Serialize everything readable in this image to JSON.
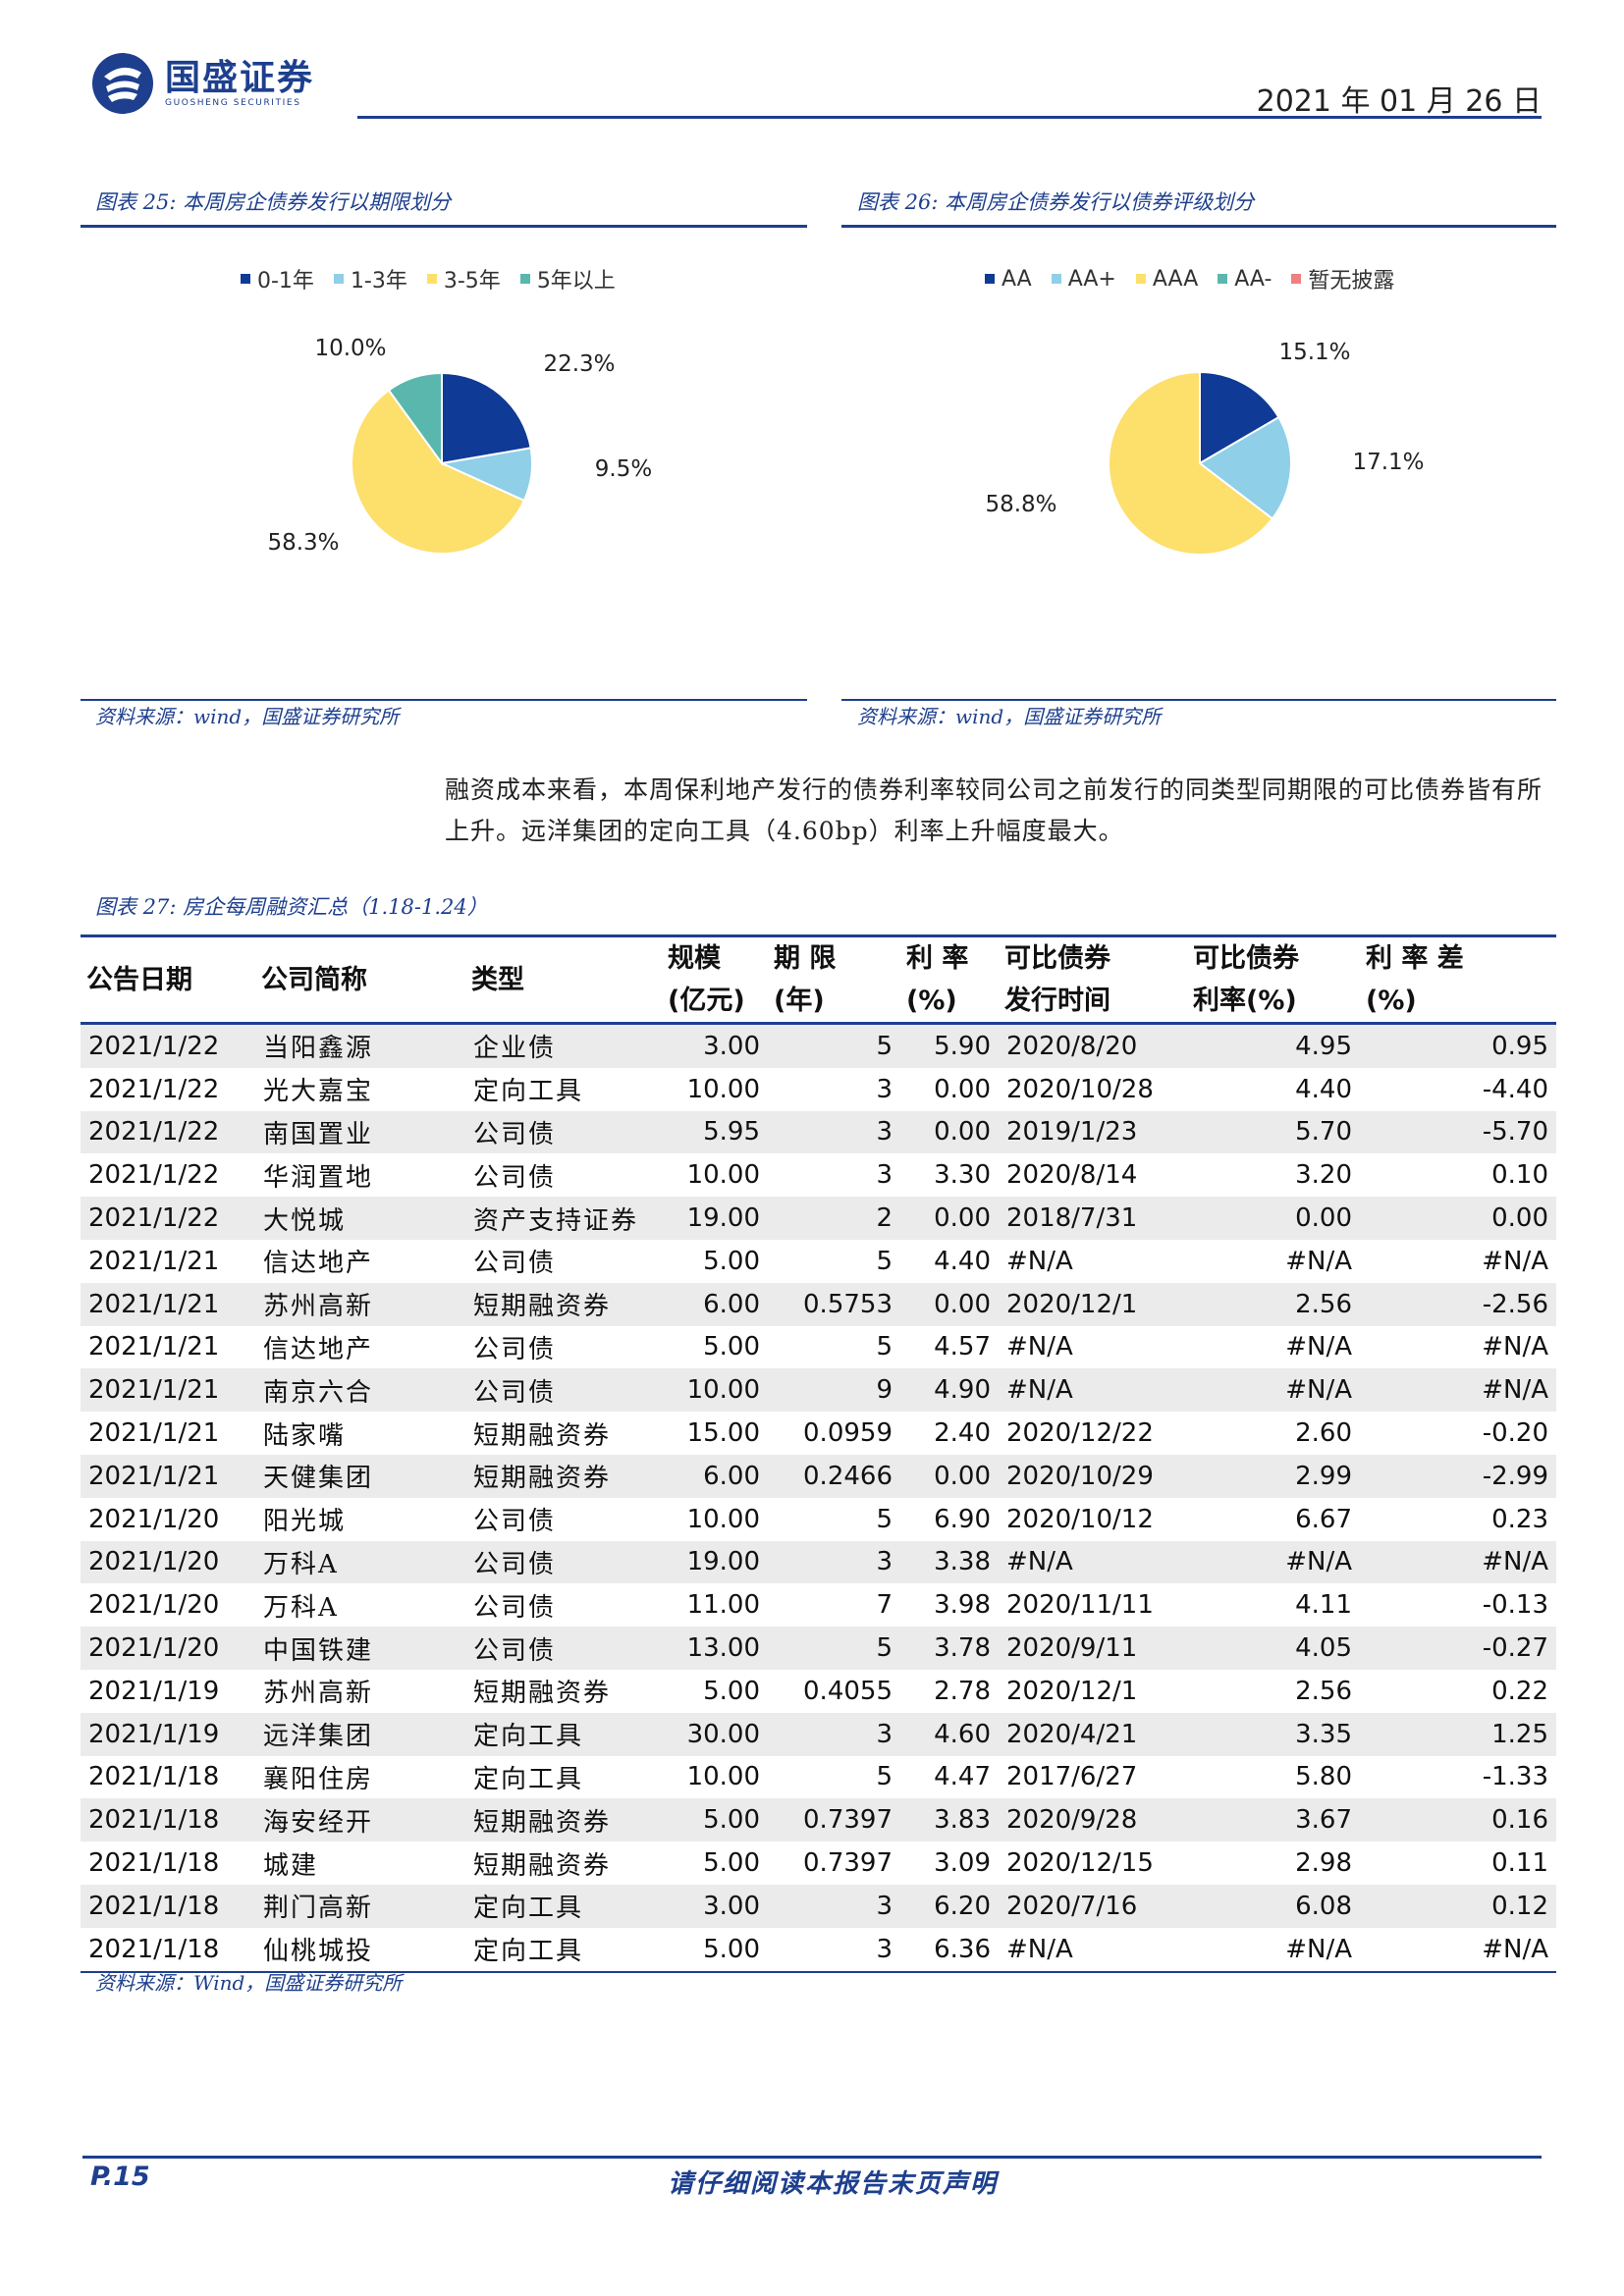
{
  "header": {
    "brand_cn": "国盛证券",
    "brand_en": "GUOSHENG SECURITIES",
    "date": "2021 年 01 月 26 日"
  },
  "colors": {
    "accent": "#1d3f8e"
  },
  "figures": [
    {
      "title": "图表 25:  本周房企债券发行以期限划分",
      "source": "资料来源：wind，国盛证券研究所",
      "chart_data": {
        "type": "pie",
        "labels": [
          "0-1年",
          "1-3年",
          "3-5年",
          "5年以上"
        ],
        "values": [
          22.3,
          9.5,
          58.3,
          10.0
        ],
        "value_labels": [
          "22.3%",
          "9.5%",
          "58.3%",
          "10.0%"
        ],
        "colors": [
          "#0f3a96",
          "#8fcfe8",
          "#fddf6b",
          "#5ab7ad"
        ],
        "legend": "top"
      }
    },
    {
      "title": "图表 26:  本周房企债券发行以债券评级划分",
      "source": "资料来源：wind，国盛证券研究所",
      "chart_data": {
        "type": "pie",
        "labels": [
          "AA",
          "AA+",
          "AAA",
          "AA-",
          "暂无披露"
        ],
        "values": [
          15.1,
          17.1,
          58.8,
          0,
          0
        ],
        "value_labels": [
          "15.1%",
          "17.1%",
          "58.8%",
          "",
          ""
        ],
        "colors": [
          "#0f3a96",
          "#8fcfe8",
          "#fddf6b",
          "#5ab7ad",
          "#f08080"
        ],
        "legend": "top"
      }
    }
  ],
  "paragraph": "融资成本来看，本周保利地产发行的债券利率较同公司之前发行的同类型同期限的可比债券皆有所上升。远洋集团的定向工具（4.60bp）利率上升幅度最大。",
  "table": {
    "title": "图表 27:  房企每周融资汇总（1.18-1.24）",
    "headers": [
      [
        "公告日期"
      ],
      [
        "公司简称"
      ],
      [
        "类型"
      ],
      [
        "规模",
        "(亿元)"
      ],
      [
        "期  限",
        "(年)"
      ],
      [
        "利  率",
        "(%)"
      ],
      [
        "可比债券",
        "发行时间"
      ],
      [
        "可比债券",
        "利率(%)"
      ],
      [
        "利 率 差",
        "(%)"
      ]
    ],
    "rows": [
      [
        "2021/1/22",
        "当阳鑫源",
        "企业债",
        "3.00",
        "5",
        "5.90",
        "2020/8/20",
        "4.95",
        "0.95"
      ],
      [
        "2021/1/22",
        "光大嘉宝",
        "定向工具",
        "10.00",
        "3",
        "0.00",
        "2020/10/28",
        "4.40",
        "-4.40"
      ],
      [
        "2021/1/22",
        "南国置业",
        "公司债",
        "5.95",
        "3",
        "0.00",
        "2019/1/23",
        "5.70",
        "-5.70"
      ],
      [
        "2021/1/22",
        "华润置地",
        "公司债",
        "10.00",
        "3",
        "3.30",
        "2020/8/14",
        "3.20",
        "0.10"
      ],
      [
        "2021/1/22",
        "大悦城",
        "资产支持证券",
        "19.00",
        "2",
        "0.00",
        "2018/7/31",
        "0.00",
        "0.00"
      ],
      [
        "2021/1/21",
        "信达地产",
        "公司债",
        "5.00",
        "5",
        "4.40",
        "#N/A",
        "#N/A",
        "#N/A"
      ],
      [
        "2021/1/21",
        "苏州高新",
        "短期融资券",
        "6.00",
        "0.5753",
        "0.00",
        "2020/12/1",
        "2.56",
        "-2.56"
      ],
      [
        "2021/1/21",
        "信达地产",
        "公司债",
        "5.00",
        "5",
        "4.57",
        "#N/A",
        "#N/A",
        "#N/A"
      ],
      [
        "2021/1/21",
        "南京六合",
        "公司债",
        "10.00",
        "9",
        "4.90",
        "#N/A",
        "#N/A",
        "#N/A"
      ],
      [
        "2021/1/21",
        "陆家嘴",
        "短期融资券",
        "15.00",
        "0.0959",
        "2.40",
        "2020/12/22",
        "2.60",
        "-0.20"
      ],
      [
        "2021/1/21",
        "天健集团",
        "短期融资券",
        "6.00",
        "0.2466",
        "0.00",
        "2020/10/29",
        "2.99",
        "-2.99"
      ],
      [
        "2021/1/20",
        "阳光城",
        "公司债",
        "10.00",
        "5",
        "6.90",
        "2020/10/12",
        "6.67",
        "0.23"
      ],
      [
        "2021/1/20",
        "万科A",
        "公司债",
        "19.00",
        "3",
        "3.38",
        "#N/A",
        "#N/A",
        "#N/A"
      ],
      [
        "2021/1/20",
        "万科A",
        "公司债",
        "11.00",
        "7",
        "3.98",
        "2020/11/11",
        "4.11",
        "-0.13"
      ],
      [
        "2021/1/20",
        "中国铁建",
        "公司债",
        "13.00",
        "5",
        "3.78",
        "2020/9/11",
        "4.05",
        "-0.27"
      ],
      [
        "2021/1/19",
        "苏州高新",
        "短期融资券",
        "5.00",
        "0.4055",
        "2.78",
        "2020/12/1",
        "2.56",
        "0.22"
      ],
      [
        "2021/1/19",
        "远洋集团",
        "定向工具",
        "30.00",
        "3",
        "4.60",
        "2020/4/21",
        "3.35",
        "1.25"
      ],
      [
        "2021/1/18",
        "襄阳住房",
        "定向工具",
        "10.00",
        "5",
        "4.47",
        "2017/6/27",
        "5.80",
        "-1.33"
      ],
      [
        "2021/1/18",
        "海安经开",
        "短期融资券",
        "5.00",
        "0.7397",
        "3.83",
        "2020/9/28",
        "3.67",
        "0.16"
      ],
      [
        "2021/1/18",
        "城建",
        "短期融资券",
        "5.00",
        "0.7397",
        "3.09",
        "2020/12/15",
        "2.98",
        "0.11"
      ],
      [
        "2021/1/18",
        "荆门高新",
        "定向工具",
        "3.00",
        "3",
        "6.20",
        "2020/7/16",
        "6.08",
        "0.12"
      ],
      [
        "2021/1/18",
        "仙桃城投",
        "定向工具",
        "5.00",
        "3",
        "6.36",
        "#N/A",
        "#N/A",
        "#N/A"
      ]
    ],
    "source": "资料来源：Wind，国盛证券研究所"
  },
  "footer": {
    "page": "P.15",
    "note": "请仔细阅读本报告末页声明"
  }
}
